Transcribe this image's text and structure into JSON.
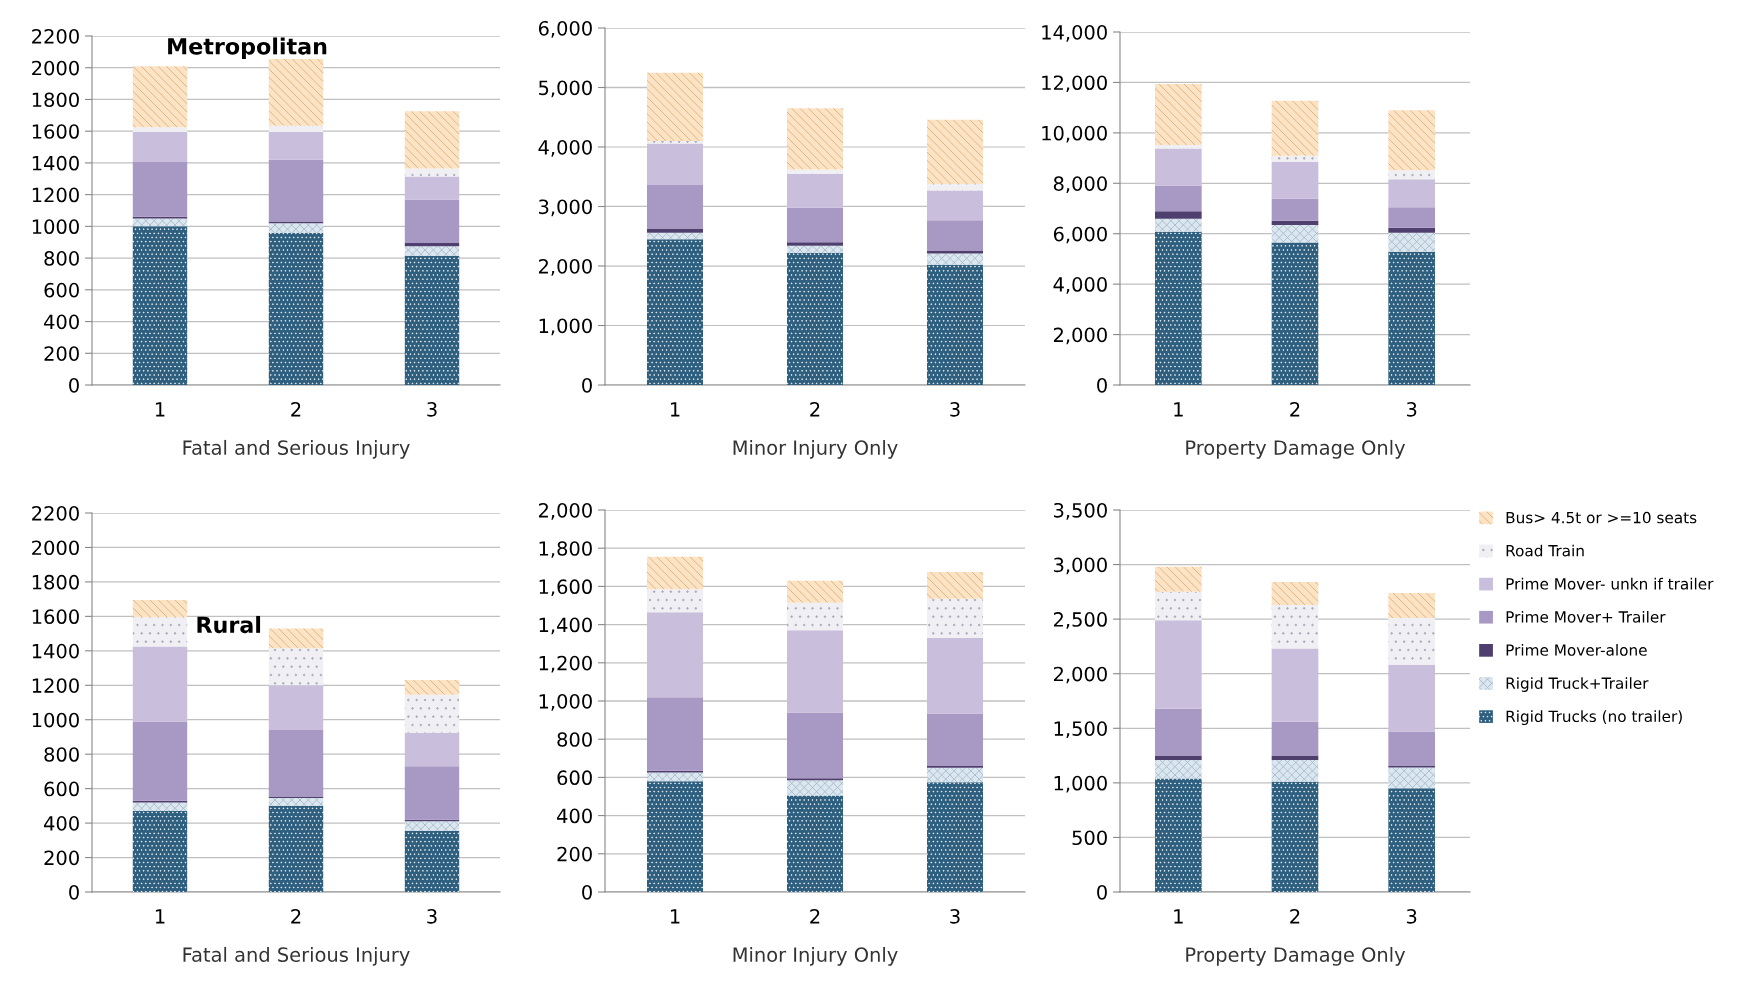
{
  "chart_data": [
    {
      "type": "bar",
      "stacked": true,
      "title": "Metropolitan",
      "xlabel": "Fatal and Serious Injury",
      "categories": [
        "1",
        "2",
        "3"
      ],
      "ylim": [
        0,
        2200
      ],
      "yticks": [
        0,
        200,
        400,
        600,
        800,
        1000,
        1200,
        1400,
        1600,
        1800,
        2000,
        2200
      ],
      "grid": "y",
      "series": [
        {
          "color": "#2f5f7f",
          "values": [
            1000,
            960,
            815
          ]
        },
        {
          "color": "#dce6ee",
          "values": [
            50,
            60,
            60
          ]
        },
        {
          "color": "#4f3f6f",
          "values": [
            10,
            10,
            20
          ]
        },
        {
          "color": "#a898c4",
          "values": [
            345,
            390,
            275
          ]
        },
        {
          "color": "#c9bedb",
          "values": [
            190,
            175,
            145
          ]
        },
        {
          "color": "#efeff4",
          "values": [
            30,
            40,
            50
          ]
        },
        {
          "color": "#fbe3c6",
          "values": [
            385,
            420,
            360
          ]
        }
      ]
    },
    {
      "type": "bar",
      "stacked": true,
      "xlabel": "Minor Injury Only",
      "categories": [
        "1",
        "2",
        "3"
      ],
      "ylim": [
        0,
        6000
      ],
      "yticks": [
        0,
        {
          "value": 1000,
          "label": "1,000"
        },
        {
          "value": 2000,
          "label": "2,000"
        },
        {
          "value": 3000,
          "label": "3,000"
        },
        {
          "value": 4000,
          "label": "4,000"
        },
        {
          "value": 5000,
          "label": "5,000"
        },
        {
          "value": 6000,
          "label": "6,000"
        }
      ],
      "grid": "y",
      "series": [
        {
          "color": "#2f5f7f",
          "values": [
            2450,
            2220,
            2020
          ]
        },
        {
          "color": "#dce6ee",
          "values": [
            110,
            120,
            190
          ]
        },
        {
          "color": "#4f3f6f",
          "values": [
            70,
            60,
            50
          ]
        },
        {
          "color": "#a898c4",
          "values": [
            730,
            580,
            510
          ]
        },
        {
          "color": "#c9bedb",
          "values": [
            700,
            570,
            500
          ]
        },
        {
          "color": "#efeff4",
          "values": [
            40,
            70,
            110
          ]
        },
        {
          "color": "#fbe3c6",
          "values": [
            1150,
            1030,
            1080
          ]
        }
      ]
    },
    {
      "type": "bar",
      "stacked": true,
      "xlabel": "Property Damage Only",
      "categories": [
        "1",
        "2",
        "3"
      ],
      "ylim": [
        0,
        14000
      ],
      "yticks": [
        0,
        {
          "value": 2000,
          "label": "2,000"
        },
        {
          "value": 4000,
          "label": "4,000"
        },
        {
          "value": 6000,
          "label": "6,000"
        },
        {
          "value": 8000,
          "label": "8,000"
        },
        {
          "value": 10000,
          "label": "10,000"
        },
        {
          "value": 12000,
          "label": "12,000"
        },
        {
          "value": 14000,
          "label": "14,000"
        }
      ],
      "grid": "y",
      "series": [
        {
          "color": "#2f5f7f",
          "values": [
            6080,
            5650,
            5280
          ]
        },
        {
          "color": "#dce6ee",
          "values": [
            510,
            700,
            760
          ]
        },
        {
          "color": "#4f3f6f",
          "values": [
            300,
            160,
            200
          ]
        },
        {
          "color": "#a898c4",
          "values": [
            1020,
            880,
            810
          ]
        },
        {
          "color": "#c9bedb",
          "values": [
            1470,
            1460,
            1110
          ]
        },
        {
          "color": "#efeff4",
          "values": [
            140,
            240,
            360
          ]
        },
        {
          "color": "#fbe3c6",
          "values": [
            2420,
            2180,
            2380
          ]
        }
      ]
    },
    {
      "type": "bar",
      "stacked": true,
      "title": "Rural",
      "xlabel": "Fatal and Serious Injury",
      "categories": [
        "1",
        "2",
        "3"
      ],
      "ylim": [
        0,
        2200
      ],
      "yticks": [
        0,
        200,
        400,
        600,
        800,
        1000,
        1200,
        1400,
        1600,
        1800,
        2000,
        2200
      ],
      "grid": "y",
      "series": [
        {
          "color": "#2f5f7f",
          "values": [
            470,
            500,
            355
          ]
        },
        {
          "color": "#dce6ee",
          "values": [
            50,
            45,
            55
          ]
        },
        {
          "color": "#4f3f6f",
          "values": [
            10,
            10,
            10
          ]
        },
        {
          "color": "#a898c4",
          "values": [
            460,
            385,
            310
          ]
        },
        {
          "color": "#c9bedb",
          "values": [
            435,
            260,
            195
          ]
        },
        {
          "color": "#efeff4",
          "values": [
            170,
            215,
            220
          ]
        },
        {
          "color": "#fbe3c6",
          "values": [
            100,
            115,
            85
          ]
        }
      ]
    },
    {
      "type": "bar",
      "stacked": true,
      "xlabel": "Minor Injury Only",
      "categories": [
        "1",
        "2",
        "3"
      ],
      "ylim": [
        0,
        2000
      ],
      "yticks": [
        0,
        200,
        400,
        600,
        800,
        {
          "value": 1000,
          "label": "1,000"
        },
        {
          "value": 1200,
          "label": "1,200"
        },
        {
          "value": 1400,
          "label": "1,400"
        },
        {
          "value": 1600,
          "label": "1,600"
        },
        {
          "value": 1800,
          "label": "1,800"
        },
        {
          "value": 2000,
          "label": "2,000"
        }
      ],
      "grid": "y",
      "series": [
        {
          "color": "#2f5f7f",
          "values": [
            580,
            505,
            575
          ]
        },
        {
          "color": "#dce6ee",
          "values": [
            45,
            80,
            75
          ]
        },
        {
          "color": "#4f3f6f",
          "values": [
            10,
            10,
            10
          ]
        },
        {
          "color": "#a898c4",
          "values": [
            385,
            345,
            275
          ]
        },
        {
          "color": "#c9bedb",
          "values": [
            445,
            430,
            395
          ]
        },
        {
          "color": "#efeff4",
          "values": [
            120,
            145,
            205
          ]
        },
        {
          "color": "#fbe3c6",
          "values": [
            170,
            115,
            140
          ]
        }
      ]
    },
    {
      "type": "bar",
      "stacked": true,
      "xlabel": "Property Damage Only",
      "categories": [
        "1",
        "2",
        "3"
      ],
      "ylim": [
        0,
        3500
      ],
      "yticks": [
        0,
        500,
        {
          "value": 1000,
          "label": "1,000"
        },
        {
          "value": 1500,
          "label": "1,500"
        },
        {
          "value": 2000,
          "label": "2,000"
        },
        {
          "value": 2500,
          "label": "2,500"
        },
        {
          "value": 3000,
          "label": "3,000"
        },
        {
          "value": 3500,
          "label": "3,500"
        }
      ],
      "grid": "y",
      "legend": "right",
      "series": [
        {
          "name": "Rigid Trucks (no trailer)",
          "color": "#2f5f7f",
          "values": [
            1040,
            1010,
            950
          ]
        },
        {
          "name": "Rigid Truck+Trailer",
          "color": "#dce6ee",
          "values": [
            170,
            200,
            190
          ]
        },
        {
          "name": "Prime Mover-alone",
          "color": "#4f3f6f",
          "values": [
            40,
            40,
            20
          ]
        },
        {
          "name": "Prime Mover+ Trailer",
          "color": "#a898c4",
          "values": [
            430,
            310,
            310
          ]
        },
        {
          "name": "Prime Mover- unkn if trailer",
          "color": "#c9bedb",
          "values": [
            810,
            670,
            610
          ]
        },
        {
          "name": "Road Train",
          "color": "#efeff4",
          "values": [
            260,
            400,
            430
          ]
        },
        {
          "name": "Bus> 4.5t or >=10 seats",
          "color": "#fbe3c6",
          "values": [
            230,
            210,
            230
          ]
        }
      ]
    }
  ]
}
